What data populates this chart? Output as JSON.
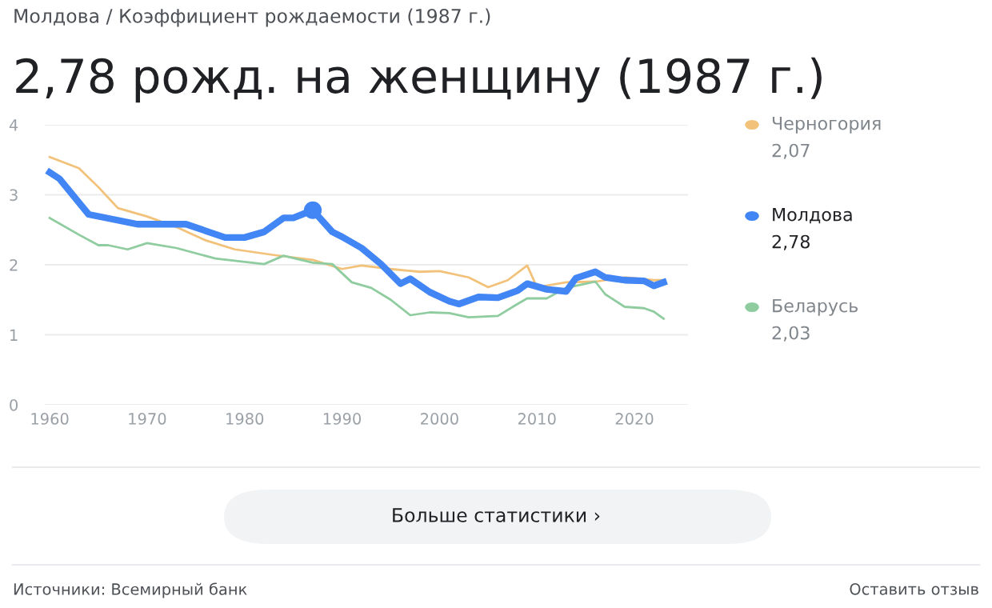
{
  "chart_data": {
    "type": "line",
    "subtitle": "Молдова / Коэффициент рождаемости (1987 г.)",
    "title": "2,78 рожд. на женщину (1987 г.)",
    "series": [
      {
        "name": "Черногория",
        "color": "#f2c27a",
        "x": [
          1960,
          1963,
          1965,
          1967,
          1970,
          1973,
          1976,
          1979,
          1983,
          1987,
          1990,
          1992,
          1995,
          1998,
          2000,
          2003,
          2005,
          2007,
          2009,
          2010,
          2013,
          2016,
          2019,
          2022,
          2023
        ],
        "values": [
          3.54,
          3.38,
          3.11,
          2.81,
          2.69,
          2.54,
          2.35,
          2.22,
          2.14,
          2.07,
          1.94,
          1.99,
          1.94,
          1.9,
          1.91,
          1.82,
          1.68,
          1.78,
          1.99,
          1.68,
          1.75,
          1.76,
          1.82,
          1.78,
          1.78
        ]
      },
      {
        "name": "Молдова",
        "color": "#4285f4",
        "x": [
          1960,
          1961,
          1964,
          1969,
          1974,
          1978,
          1980,
          1982,
          1984,
          1985,
          1987,
          1989,
          1990,
          1992,
          1994,
          1996,
          1997,
          1999,
          2001,
          2002,
          2004,
          2006,
          2008,
          2009,
          2011,
          2013,
          2014,
          2016,
          2017,
          2019,
          2021,
          2022,
          2023
        ],
        "values": [
          3.32,
          3.23,
          2.72,
          2.58,
          2.58,
          2.39,
          2.39,
          2.47,
          2.67,
          2.67,
          2.78,
          2.47,
          2.4,
          2.24,
          2.01,
          1.73,
          1.8,
          1.61,
          1.48,
          1.44,
          1.54,
          1.53,
          1.63,
          1.73,
          1.65,
          1.62,
          1.81,
          1.9,
          1.82,
          1.78,
          1.77,
          1.7,
          1.75
        ]
      },
      {
        "name": "Беларусь",
        "color": "#8fcc9f",
        "x": [
          1960,
          1963,
          1965,
          1966,
          1968,
          1970,
          1973,
          1977,
          1982,
          1984,
          1987,
          1989,
          1991,
          1993,
          1995,
          1997,
          1999,
          2001,
          2003,
          2006,
          2008,
          2009,
          2011,
          2013,
          2015,
          2016,
          2017,
          2019,
          2021,
          2022,
          2023
        ],
        "values": [
          2.67,
          2.43,
          2.28,
          2.28,
          2.22,
          2.31,
          2.24,
          2.09,
          2.01,
          2.13,
          2.03,
          2.01,
          1.75,
          1.67,
          1.5,
          1.28,
          1.32,
          1.31,
          1.25,
          1.27,
          1.44,
          1.52,
          1.52,
          1.67,
          1.73,
          1.76,
          1.58,
          1.4,
          1.38,
          1.33,
          1.23
        ]
      }
    ],
    "annotations": [
      "2,07",
      "2,78",
      "2,03",
      "Больше статистики ›",
      "Источники: Всемирный банк",
      "Оставить отзыв"
    ],
    "xlim": [
      1959.5,
      2025.5
    ],
    "xticks": [
      1960,
      1970,
      1980,
      1990,
      2000,
      2010,
      2020
    ],
    "ylim": [
      0,
      4
    ],
    "yticks": [
      0,
      1,
      2,
      3,
      4
    ],
    "grid": "y",
    "legend": "right"
  }
}
